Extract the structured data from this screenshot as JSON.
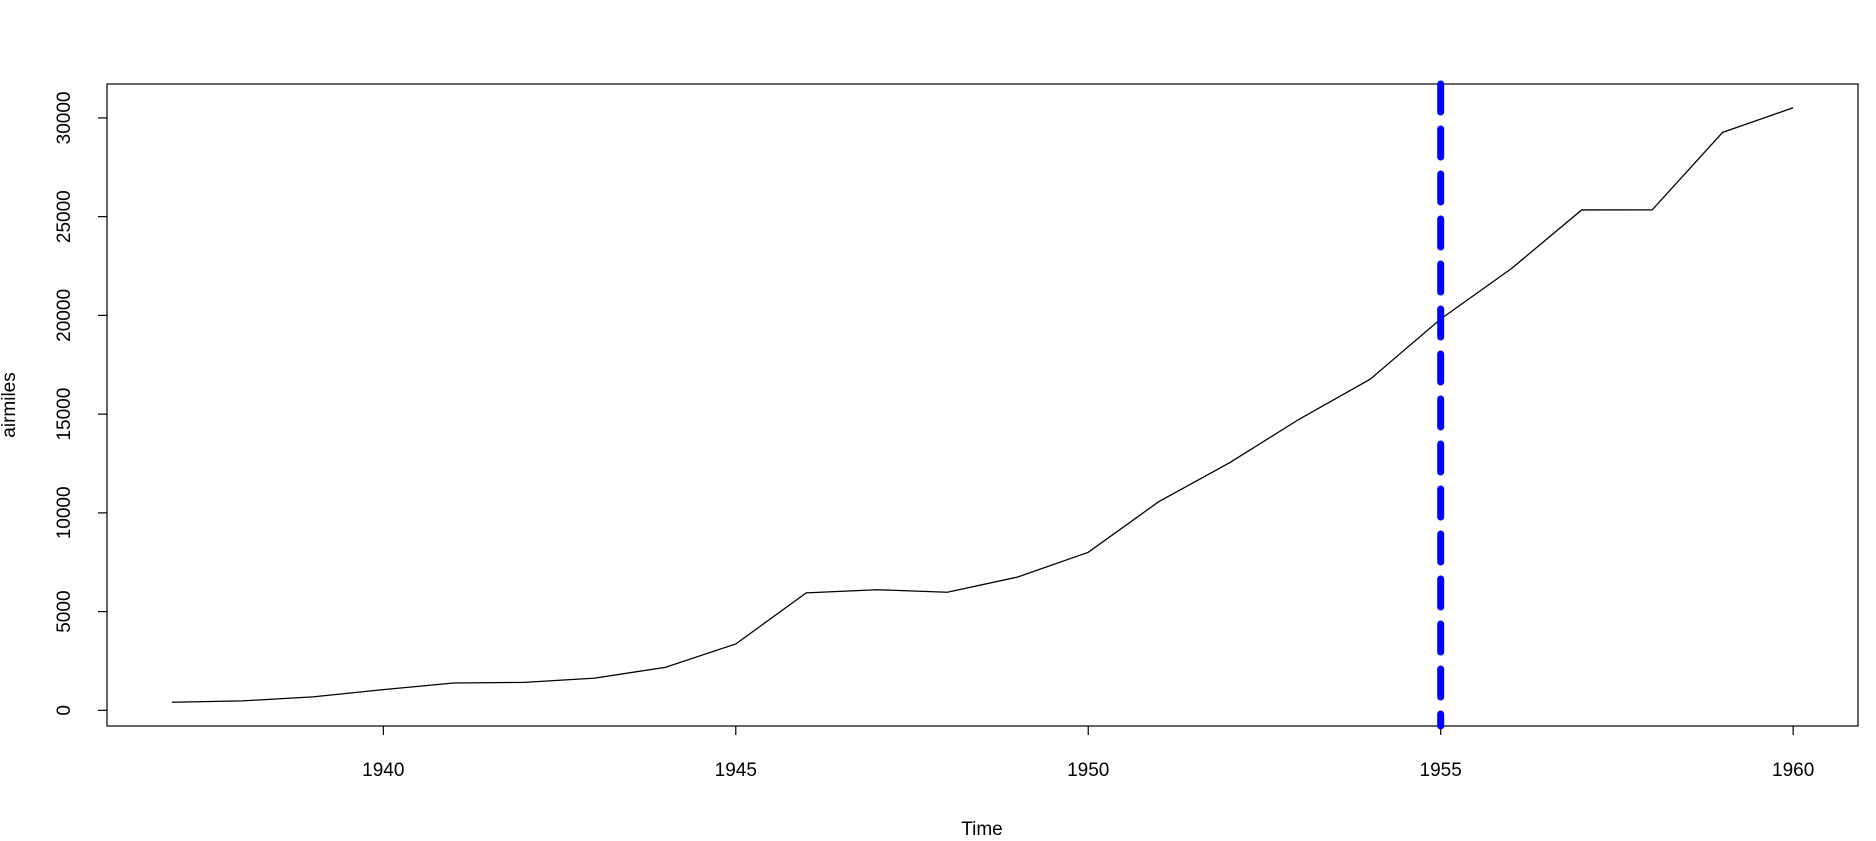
{
  "chart_data": {
    "type": "line",
    "xlabel": "Time",
    "ylabel": "airmiles",
    "x": [
      1937,
      1938,
      1939,
      1940,
      1941,
      1942,
      1943,
      1944,
      1945,
      1946,
      1947,
      1948,
      1949,
      1950,
      1951,
      1952,
      1953,
      1954,
      1955,
      1956,
      1957,
      1958,
      1959,
      1960
    ],
    "series": [
      {
        "color": "#000000",
        "values": [
          412,
          480,
          683,
          1052,
          1385,
          1418,
          1634,
          2178,
          3362,
          5948,
          6109,
          5981,
          6753,
          8003,
          10566,
          12528,
          14760,
          16769,
          19819,
          22362,
          25340,
          25343,
          29269,
          30514
        ]
      }
    ],
    "vline": {
      "value": 1955,
      "color": "#0000ff"
    },
    "xlim": [
      1936.08,
      1960.92
    ],
    "xticks": [
      1940,
      1945,
      1950,
      1955,
      1960
    ],
    "ylim": [
      -792,
      31718
    ],
    "yticks": [
      0,
      5000,
      10000,
      15000,
      20000,
      25000,
      30000
    ],
    "grid": false
  }
}
